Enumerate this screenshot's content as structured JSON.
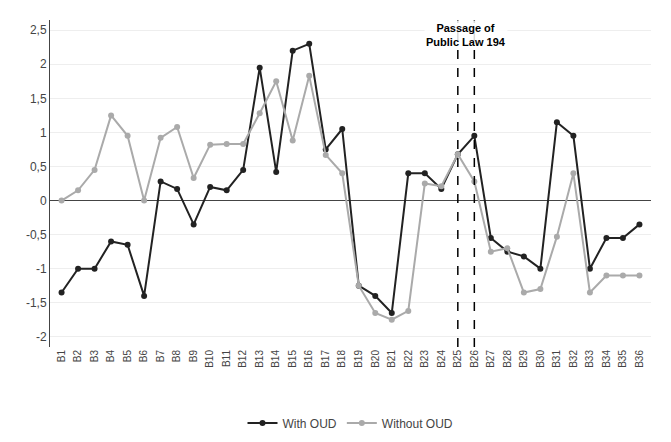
{
  "chart_data": {
    "type": "line",
    "categories": [
      "B1",
      "B2",
      "B3",
      "B4",
      "B5",
      "B6",
      "B7",
      "B8",
      "B9",
      "B10",
      "B11",
      "B12",
      "B13",
      "B14",
      "B15",
      "B16",
      "B17",
      "B18",
      "B19",
      "B20",
      "B21",
      "B22",
      "B23",
      "B24",
      "B25",
      "B26",
      "B27",
      "B28",
      "B29",
      "B30",
      "B31",
      "B32",
      "B33",
      "B34",
      "B35",
      "B36"
    ],
    "series": [
      {
        "name": "With OUD",
        "color": "#222222",
        "marker": "circle",
        "values": [
          -1.35,
          -1.0,
          -1.0,
          -0.6,
          -0.65,
          -1.4,
          0.28,
          0.17,
          -0.35,
          0.2,
          0.15,
          0.45,
          1.95,
          0.42,
          2.2,
          2.3,
          0.75,
          1.05,
          -1.25,
          -1.4,
          -1.65,
          0.4,
          0.4,
          0.17,
          0.68,
          0.95,
          -0.55,
          -0.75,
          -0.82,
          -1.0,
          1.15,
          0.95,
          -1.0,
          -0.55,
          -0.55,
          -0.35
        ]
      },
      {
        "name": "Without OUD",
        "color": "#aaaaaa",
        "marker": "circle",
        "values": [
          0.0,
          0.15,
          0.45,
          1.25,
          0.95,
          0.0,
          0.92,
          1.08,
          0.33,
          0.82,
          0.83,
          0.83,
          1.28,
          1.75,
          0.88,
          1.83,
          0.67,
          0.4,
          -1.25,
          -1.65,
          -1.75,
          -1.62,
          0.25,
          0.21,
          0.68,
          0.28,
          -0.75,
          -0.7,
          -1.35,
          -1.3,
          -0.53,
          0.4,
          -1.35,
          -1.1,
          -1.1,
          -1.1
        ]
      }
    ],
    "vlines": [
      "B25",
      "B26"
    ],
    "annotations": [
      "Passage of\nPublic Law 194"
    ],
    "ylim": [
      -2.15,
      2.65
    ],
    "yticks": [
      -2,
      {
        "value": -1.5,
        "label": "-1,5"
      },
      -1,
      {
        "value": -0.5,
        "label": "-0,5"
      },
      0,
      {
        "value": 0.5,
        "label": "0,5"
      },
      1,
      {
        "value": 1.5,
        "label": "1,5"
      },
      2,
      {
        "value": 2.5,
        "label": "2,5"
      }
    ],
    "grid": true,
    "legend": "bottom"
  }
}
